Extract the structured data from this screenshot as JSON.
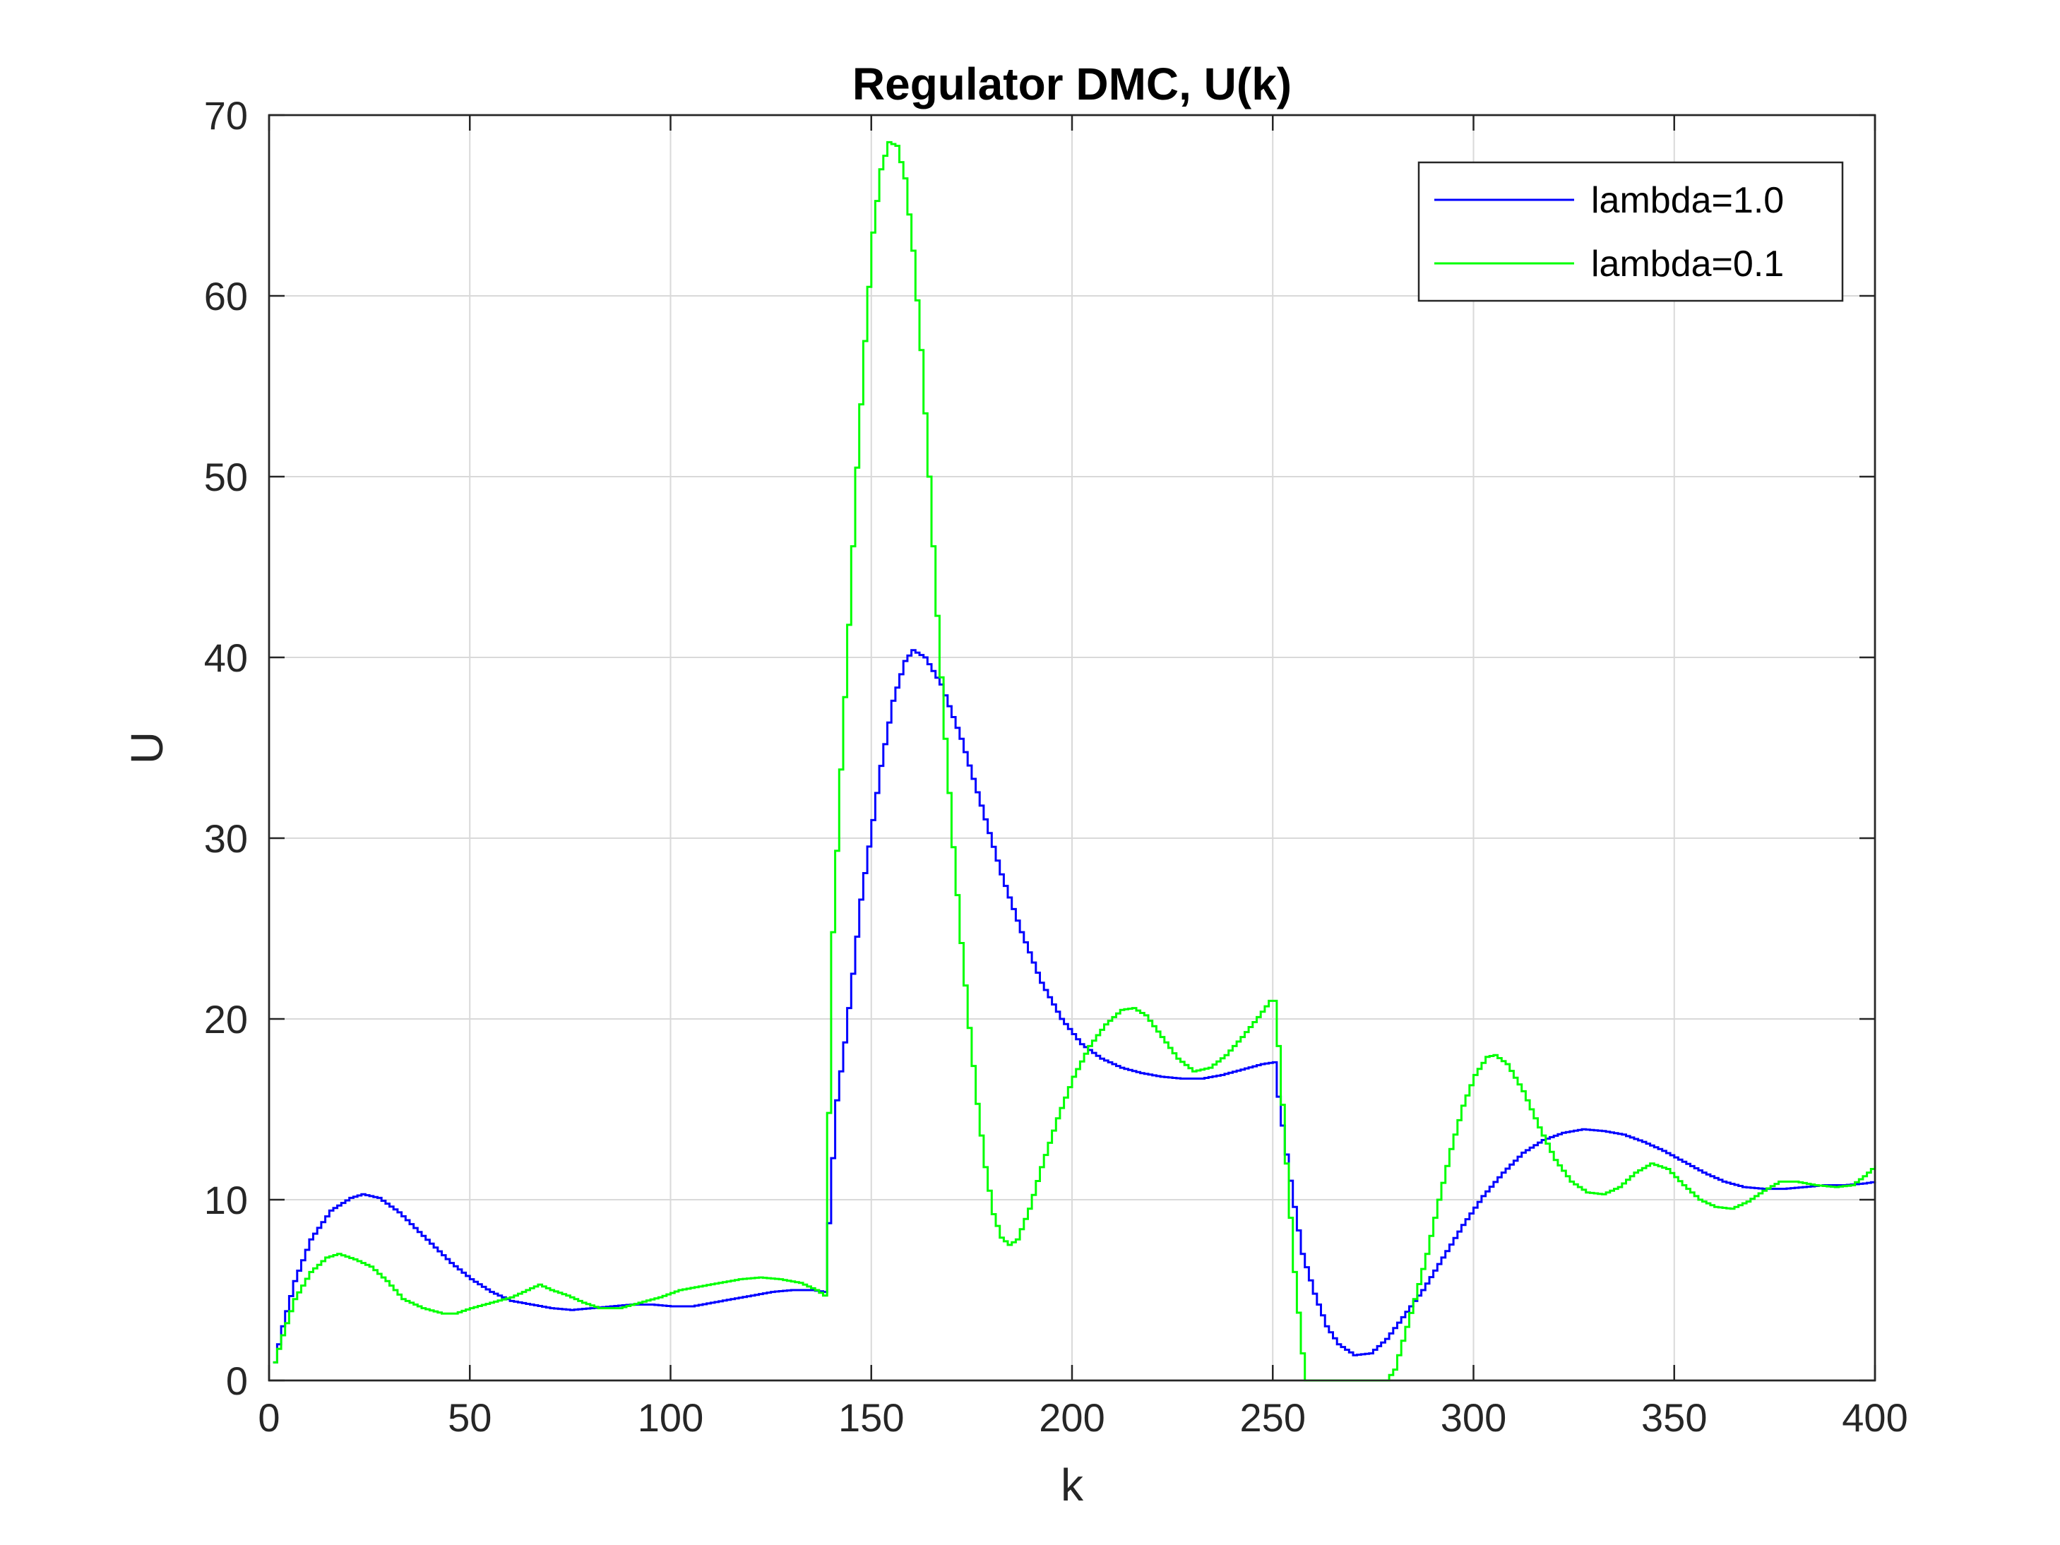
{
  "chart_data": {
    "type": "line",
    "title": "Regulator DMC, U(k)",
    "xlabel": "k",
    "ylabel": "U",
    "xlim": [
      0,
      400
    ],
    "ylim": [
      0,
      70
    ],
    "xticks": [
      0,
      50,
      100,
      150,
      200,
      250,
      300,
      350,
      400
    ],
    "yticks": [
      0,
      10,
      20,
      30,
      40,
      50,
      60,
      70
    ],
    "grid": true,
    "legend_position": "top-right",
    "step": true,
    "series": [
      {
        "name": "lambda=1.0",
        "color": "#0000ff",
        "points": [
          [
            1,
            1.0
          ],
          [
            3,
            3.0
          ],
          [
            6,
            5.5
          ],
          [
            10,
            7.8
          ],
          [
            15,
            9.4
          ],
          [
            20,
            10.1
          ],
          [
            23,
            10.3
          ],
          [
            27,
            10.1
          ],
          [
            32,
            9.3
          ],
          [
            38,
            8.0
          ],
          [
            45,
            6.5
          ],
          [
            50,
            5.6
          ],
          [
            55,
            4.9
          ],
          [
            60,
            4.4
          ],
          [
            65,
            4.2
          ],
          [
            70,
            4.0
          ],
          [
            75,
            3.9
          ],
          [
            80,
            4.0
          ],
          [
            85,
            4.1
          ],
          [
            90,
            4.2
          ],
          [
            95,
            4.2
          ],
          [
            100,
            4.1
          ],
          [
            105,
            4.1
          ],
          [
            110,
            4.3
          ],
          [
            115,
            4.5
          ],
          [
            120,
            4.7
          ],
          [
            125,
            4.9
          ],
          [
            130,
            5.0
          ],
          [
            135,
            5.0
          ],
          [
            138,
            4.9
          ],
          [
            139,
            8.7
          ],
          [
            140,
            12.3
          ],
          [
            141,
            15.5
          ],
          [
            143,
            18.7
          ],
          [
            145,
            22.5
          ],
          [
            147,
            26.6
          ],
          [
            150,
            31.0
          ],
          [
            152,
            34.0
          ],
          [
            155,
            37.6
          ],
          [
            158,
            39.8
          ],
          [
            160,
            40.4
          ],
          [
            163,
            40.0
          ],
          [
            167,
            38.5
          ],
          [
            172,
            35.5
          ],
          [
            177,
            31.8
          ],
          [
            182,
            28.0
          ],
          [
            187,
            24.8
          ],
          [
            192,
            22.0
          ],
          [
            197,
            20.0
          ],
          [
            202,
            18.6
          ],
          [
            207,
            17.8
          ],
          [
            212,
            17.3
          ],
          [
            217,
            17.0
          ],
          [
            222,
            16.8
          ],
          [
            227,
            16.7
          ],
          [
            232,
            16.7
          ],
          [
            237,
            16.9
          ],
          [
            242,
            17.2
          ],
          [
            247,
            17.5
          ],
          [
            250,
            17.6
          ],
          [
            251,
            15.7
          ],
          [
            253,
            12.5
          ],
          [
            255,
            9.6
          ],
          [
            257,
            7.0
          ],
          [
            260,
            4.8
          ],
          [
            263,
            3.0
          ],
          [
            266,
            2.0
          ],
          [
            270,
            1.4
          ],
          [
            274,
            1.5
          ],
          [
            278,
            2.3
          ],
          [
            282,
            3.5
          ],
          [
            287,
            5.0
          ],
          [
            292,
            6.8
          ],
          [
            297,
            8.6
          ],
          [
            302,
            10.2
          ],
          [
            307,
            11.5
          ],
          [
            312,
            12.6
          ],
          [
            317,
            13.3
          ],
          [
            322,
            13.7
          ],
          [
            327,
            13.9
          ],
          [
            332,
            13.8
          ],
          [
            337,
            13.6
          ],
          [
            342,
            13.2
          ],
          [
            347,
            12.7
          ],
          [
            352,
            12.1
          ],
          [
            357,
            11.5
          ],
          [
            362,
            11.0
          ],
          [
            367,
            10.7
          ],
          [
            372,
            10.6
          ],
          [
            377,
            10.6
          ],
          [
            382,
            10.7
          ],
          [
            387,
            10.8
          ],
          [
            392,
            10.8
          ],
          [
            397,
            10.9
          ],
          [
            400,
            11.0
          ]
        ]
      },
      {
        "name": "lambda=0.1",
        "color": "#00ff00",
        "points": [
          [
            1,
            1.0
          ],
          [
            3,
            2.5
          ],
          [
            6,
            4.5
          ],
          [
            10,
            6.0
          ],
          [
            14,
            6.8
          ],
          [
            17,
            7.0
          ],
          [
            21,
            6.7
          ],
          [
            25,
            6.3
          ],
          [
            29,
            5.5
          ],
          [
            33,
            4.5
          ],
          [
            38,
            4.0
          ],
          [
            43,
            3.7
          ],
          [
            46,
            3.7
          ],
          [
            50,
            4.0
          ],
          [
            55,
            4.3
          ],
          [
            60,
            4.6
          ],
          [
            64,
            5.0
          ],
          [
            67,
            5.3
          ],
          [
            70,
            5.0
          ],
          [
            74,
            4.7
          ],
          [
            78,
            4.3
          ],
          [
            82,
            4.0
          ],
          [
            87,
            4.0
          ],
          [
            92,
            4.3
          ],
          [
            97,
            4.6
          ],
          [
            102,
            5.0
          ],
          [
            107,
            5.2
          ],
          [
            112,
            5.4
          ],
          [
            117,
            5.6
          ],
          [
            122,
            5.7
          ],
          [
            127,
            5.6
          ],
          [
            132,
            5.4
          ],
          [
            136,
            5.0
          ],
          [
            138,
            4.7
          ],
          [
            139,
            14.8
          ],
          [
            140,
            24.8
          ],
          [
            142,
            33.8
          ],
          [
            144,
            41.8
          ],
          [
            146,
            50.5
          ],
          [
            148,
            57.5
          ],
          [
            150,
            63.5
          ],
          [
            152,
            67.0
          ],
          [
            154,
            68.5
          ],
          [
            156,
            68.3
          ],
          [
            158,
            66.5
          ],
          [
            160,
            62.5
          ],
          [
            162,
            57.0
          ],
          [
            164,
            50.0
          ],
          [
            166,
            42.3
          ],
          [
            168,
            35.5
          ],
          [
            170,
            29.5
          ],
          [
            172,
            24.2
          ],
          [
            174,
            19.5
          ],
          [
            176,
            15.3
          ],
          [
            178,
            11.8
          ],
          [
            180,
            9.2
          ],
          [
            182,
            7.9
          ],
          [
            184,
            7.5
          ],
          [
            186,
            7.8
          ],
          [
            189,
            9.5
          ],
          [
            192,
            11.8
          ],
          [
            196,
            14.5
          ],
          [
            200,
            16.8
          ],
          [
            204,
            18.5
          ],
          [
            208,
            19.7
          ],
          [
            212,
            20.5
          ],
          [
            215,
            20.6
          ],
          [
            218,
            20.2
          ],
          [
            222,
            19.0
          ],
          [
            226,
            17.8
          ],
          [
            230,
            17.1
          ],
          [
            234,
            17.3
          ],
          [
            238,
            18.0
          ],
          [
            242,
            19.0
          ],
          [
            246,
            20.1
          ],
          [
            249,
            21.0
          ],
          [
            250,
            21.0
          ],
          [
            251,
            18.5
          ],
          [
            253,
            12.0
          ],
          [
            255,
            6.0
          ],
          [
            257,
            1.5
          ],
          [
            258,
            0.0
          ],
          [
            270,
            0.0
          ],
          [
            278,
            0.0
          ],
          [
            280,
            0.6
          ],
          [
            282,
            2.2
          ],
          [
            285,
            4.5
          ],
          [
            288,
            7.0
          ],
          [
            291,
            10.0
          ],
          [
            294,
            12.8
          ],
          [
            297,
            15.2
          ],
          [
            300,
            16.9
          ],
          [
            303,
            17.9
          ],
          [
            305,
            18.0
          ],
          [
            308,
            17.5
          ],
          [
            312,
            16.0
          ],
          [
            316,
            14.0
          ],
          [
            320,
            12.2
          ],
          [
            324,
            11.0
          ],
          [
            328,
            10.4
          ],
          [
            332,
            10.3
          ],
          [
            336,
            10.7
          ],
          [
            340,
            11.5
          ],
          [
            344,
            12.0
          ],
          [
            348,
            11.7
          ],
          [
            352,
            10.8
          ],
          [
            356,
            10.0
          ],
          [
            360,
            9.6
          ],
          [
            364,
            9.5
          ],
          [
            368,
            9.9
          ],
          [
            372,
            10.5
          ],
          [
            376,
            11.0
          ],
          [
            380,
            11.0
          ],
          [
            385,
            10.8
          ],
          [
            390,
            10.7
          ],
          [
            394,
            10.8
          ],
          [
            397,
            11.3
          ],
          [
            400,
            11.9
          ]
        ]
      }
    ]
  }
}
